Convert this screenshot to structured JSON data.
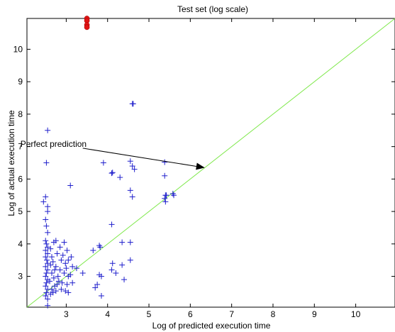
{
  "chart_data": {
    "type": "scatter",
    "title": "Test set (log scale)",
    "xlabel": "Log of predicted execution time",
    "ylabel": "Log of actual execution time",
    "xlim": [
      2.05,
      10.95
    ],
    "ylim": [
      2.05,
      10.95
    ],
    "xticks": [
      "3",
      "4",
      "5",
      "6",
      "7",
      "8",
      "9",
      "10"
    ],
    "yticks": [
      "3",
      "4",
      "5",
      "6",
      "7",
      "8",
      "9",
      "10"
    ],
    "grid": false,
    "colors": {
      "plus": "#1f1fcc",
      "dots": "#e01515",
      "diagonal": "#7ee84a",
      "arrow": "#000000"
    },
    "annotation": {
      "text": "Perfect prediction",
      "from": [
        3.4,
        6.95
      ],
      "to": [
        6.35,
        6.35
      ]
    },
    "reference_line": {
      "label": "",
      "from": [
        2.05,
        2.05
      ],
      "to": [
        10.95,
        10.95
      ]
    },
    "series": [
      {
        "marker": "plus",
        "points": [
          [
            2.55,
            7.5
          ],
          [
            2.52,
            6.5
          ],
          [
            2.5,
            5.45
          ],
          [
            2.45,
            5.3
          ],
          [
            2.55,
            5.15
          ],
          [
            2.55,
            5.0
          ],
          [
            2.5,
            4.75
          ],
          [
            2.52,
            4.55
          ],
          [
            2.55,
            4.35
          ],
          [
            2.5,
            4.1
          ],
          [
            2.52,
            4.0
          ],
          [
            2.55,
            3.9
          ],
          [
            2.5,
            3.8
          ],
          [
            2.55,
            3.7
          ],
          [
            2.5,
            3.6
          ],
          [
            2.53,
            3.5
          ],
          [
            2.55,
            3.4
          ],
          [
            2.5,
            3.3
          ],
          [
            2.55,
            3.2
          ],
          [
            2.52,
            3.1
          ],
          [
            2.5,
            3.0
          ],
          [
            2.55,
            2.9
          ],
          [
            2.52,
            2.8
          ],
          [
            2.5,
            2.7
          ],
          [
            2.55,
            2.6
          ],
          [
            2.52,
            2.5
          ],
          [
            2.5,
            2.4
          ],
          [
            2.55,
            2.3
          ],
          [
            2.55,
            2.1
          ],
          [
            2.62,
            3.85
          ],
          [
            2.65,
            3.6
          ],
          [
            2.62,
            3.35
          ],
          [
            2.65,
            3.1
          ],
          [
            2.6,
            2.85
          ],
          [
            2.65,
            2.6
          ],
          [
            2.62,
            2.45
          ],
          [
            2.7,
            4.05
          ],
          [
            2.68,
            3.45
          ],
          [
            2.72,
            3.2
          ],
          [
            2.7,
            2.95
          ],
          [
            2.72,
            2.7
          ],
          [
            2.68,
            2.5
          ],
          [
            2.75,
            4.1
          ],
          [
            2.78,
            3.7
          ],
          [
            2.75,
            3.3
          ],
          [
            2.8,
            3.0
          ],
          [
            2.78,
            2.75
          ],
          [
            2.75,
            2.55
          ],
          [
            2.85,
            3.9
          ],
          [
            2.88,
            3.5
          ],
          [
            2.85,
            3.2
          ],
          [
            2.82,
            2.85
          ],
          [
            2.88,
            2.6
          ],
          [
            2.95,
            4.05
          ],
          [
            2.92,
            3.65
          ],
          [
            2.98,
            3.4
          ],
          [
            2.95,
            3.1
          ],
          [
            2.9,
            2.8
          ],
          [
            2.98,
            2.55
          ],
          [
            3.02,
            3.8
          ],
          [
            3.05,
            3.5
          ],
          [
            3.0,
            3.25
          ],
          [
            3.05,
            3.0
          ],
          [
            3.02,
            2.75
          ],
          [
            3.05,
            2.5
          ],
          [
            3.1,
            5.8
          ],
          [
            3.12,
            3.6
          ],
          [
            3.15,
            3.3
          ],
          [
            3.1,
            3.05
          ],
          [
            3.15,
            2.8
          ],
          [
            3.25,
            3.25
          ],
          [
            3.4,
            3.1
          ],
          [
            3.65,
            3.8
          ],
          [
            3.7,
            2.65
          ],
          [
            3.75,
            2.75
          ],
          [
            3.8,
            3.95
          ],
          [
            3.8,
            3.05
          ],
          [
            3.82,
            3.9
          ],
          [
            3.85,
            3.0
          ],
          [
            3.85,
            2.4
          ],
          [
            3.9,
            6.5
          ],
          [
            4.1,
            6.18
          ],
          [
            4.12,
            6.2
          ],
          [
            4.1,
            4.6
          ],
          [
            4.12,
            3.4
          ],
          [
            4.1,
            3.2
          ],
          [
            4.2,
            3.1
          ],
          [
            4.3,
            6.05
          ],
          [
            4.35,
            4.05
          ],
          [
            4.35,
            3.35
          ],
          [
            4.4,
            2.9
          ],
          [
            4.55,
            6.55
          ],
          [
            4.6,
            6.4
          ],
          [
            4.65,
            6.3
          ],
          [
            4.55,
            5.65
          ],
          [
            4.6,
            5.45
          ],
          [
            4.55,
            4.05
          ],
          [
            4.55,
            3.5
          ],
          [
            4.6,
            8.32
          ],
          [
            4.62,
            8.32
          ],
          [
            5.38,
            6.52
          ],
          [
            5.38,
            6.1
          ],
          [
            5.4,
            5.5
          ],
          [
            5.38,
            5.4
          ],
          [
            5.4,
            5.3
          ],
          [
            5.42,
            5.5
          ],
          [
            5.58,
            5.55
          ],
          [
            5.6,
            5.5
          ]
        ]
      },
      {
        "marker": "dot",
        "points": [
          [
            3.5,
            10.95
          ],
          [
            3.5,
            10.88
          ],
          [
            3.5,
            10.75
          ],
          [
            3.5,
            10.68
          ]
        ]
      }
    ]
  }
}
